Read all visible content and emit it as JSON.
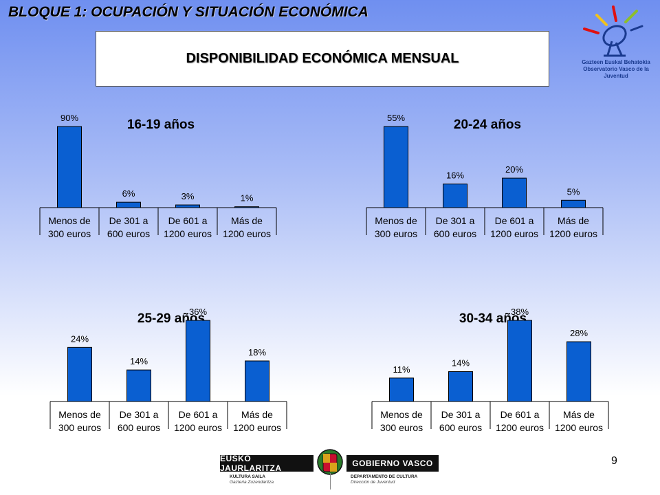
{
  "header": {
    "block_title": "BLOQUE 1: OCUPACIÓN Y SITUACIÓN ECONÓMICA",
    "title": "DISPONIBILIDAD ECONÓMICA MENSUAL"
  },
  "logo": {
    "line1": "Gazteen Euskal Behatokia",
    "line2": "Observatorio Vasco de la Juventud"
  },
  "colors": {
    "bar": "#0a5fd1",
    "bar_border": "#000000"
  },
  "chart_data": [
    {
      "type": "bar",
      "title": "16-19 años",
      "categories": [
        [
          "Menos de",
          "300 euros"
        ],
        [
          "De 301 a",
          "600 euros"
        ],
        [
          "De 601 a",
          "1200 euros"
        ],
        [
          "Más de",
          "1200 euros"
        ]
      ],
      "values": [
        90,
        6,
        3,
        1
      ],
      "value_labels": [
        "90%",
        "6%",
        "3%",
        "1%"
      ],
      "ylim": [
        0,
        90
      ]
    },
    {
      "type": "bar",
      "title": "20-24 años",
      "categories": [
        [
          "Menos de",
          "300 euros"
        ],
        [
          "De 301 a",
          "600 euros"
        ],
        [
          "De 601 a",
          "1200 euros"
        ],
        [
          "Más de",
          "1200 euros"
        ]
      ],
      "values": [
        55,
        16,
        20,
        5
      ],
      "value_labels": [
        "55%",
        "16%",
        "20%",
        "5%"
      ],
      "ylim": [
        0,
        55
      ]
    },
    {
      "type": "bar",
      "title": "25-29 años",
      "categories": [
        [
          "Menos de",
          "300 euros"
        ],
        [
          "De 301 a",
          "600 euros"
        ],
        [
          "De 601 a",
          "1200 euros"
        ],
        [
          "Más de",
          "1200 euros"
        ]
      ],
      "values": [
        24,
        14,
        36,
        18
      ],
      "value_labels": [
        "24%",
        "14%",
        "36%",
        "18%"
      ],
      "ylim": [
        0,
        36
      ]
    },
    {
      "type": "bar",
      "title": "30-34 años",
      "categories": [
        [
          "Menos de",
          "300 euros"
        ],
        [
          "De 301 a",
          "600 euros"
        ],
        [
          "De 601 a",
          "1200 euros"
        ],
        [
          "Más de",
          "1200 euros"
        ]
      ],
      "values": [
        11,
        14,
        38,
        28
      ],
      "value_labels": [
        "11%",
        "14%",
        "38%",
        "28%"
      ],
      "ylim": [
        0,
        38
      ]
    }
  ],
  "footer": {
    "left_banner": "EUSKO JAURLARITZA",
    "right_banner": "GOBIERNO VASCO",
    "left_dept": "KULTURA SAILA",
    "left_sub": "Gazteria Zuzendaritza",
    "right_dept": "DEPARTAMENTO DE CULTURA",
    "right_sub": "Dirección de Juventud",
    "page_number": "9"
  }
}
